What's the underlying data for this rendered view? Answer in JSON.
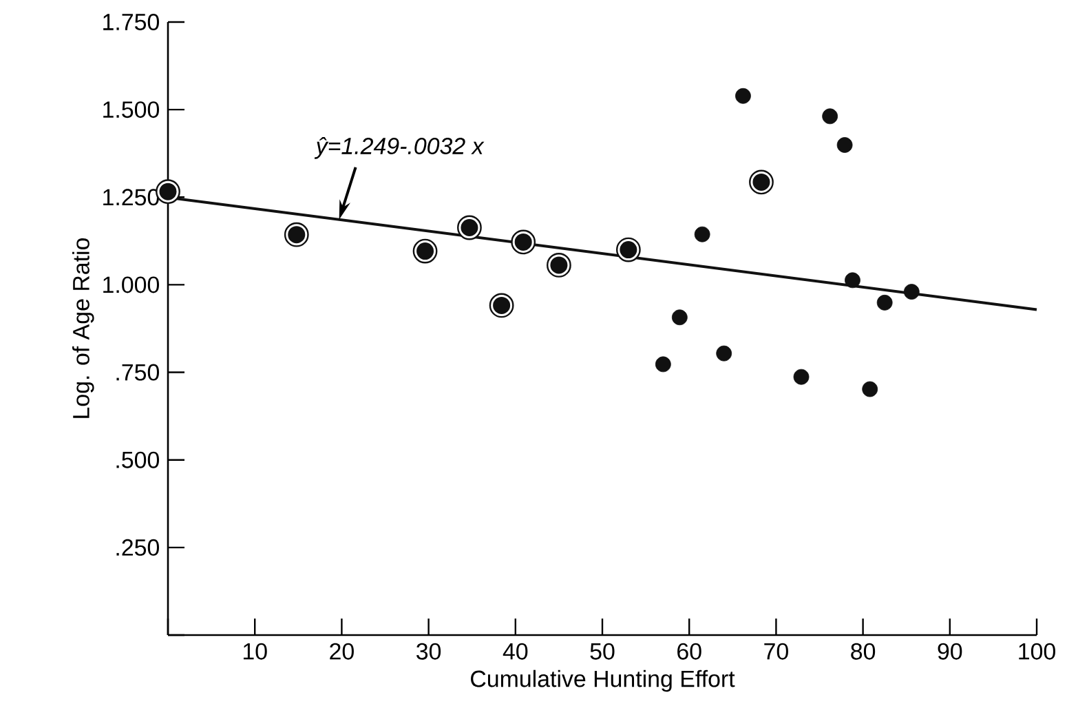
{
  "chart_data": {
    "type": "scatter",
    "xlabel": "Cumulative Hunting Effort",
    "ylabel": "Log. of Age Ratio",
    "xlim": [
      0,
      100
    ],
    "ylim": [
      0,
      1.75
    ],
    "xticks": [
      {
        "value": 0,
        "label": null
      },
      10,
      20,
      30,
      40,
      50,
      60,
      70,
      80,
      90,
      100
    ],
    "yticks": [
      {
        "value": 0,
        "label": null
      },
      {
        "value": 0.25,
        "label": ".250"
      },
      {
        "value": 0.5,
        "label": ".500"
      },
      {
        "value": 0.75,
        "label": ".750"
      },
      {
        "value": 1.0,
        "label": "1.000"
      },
      {
        "value": 1.25,
        "label": "1.250"
      },
      {
        "value": 1.5,
        "label": "1.500"
      },
      {
        "value": 1.75,
        "label": "1.750"
      }
    ],
    "series": [
      {
        "type": "scatter",
        "marker": "circle",
        "color": "#111111",
        "x": [
          0,
          14.8,
          29.6,
          34.7,
          38.4,
          40.9,
          45.0,
          53.0,
          68.3
        ],
        "values": [
          1.266,
          1.143,
          1.096,
          1.163,
          0.941,
          1.122,
          1.056,
          1.1,
          1.293
        ]
      },
      {
        "type": "scatter",
        "color": "#111111",
        "x": [
          57.0,
          58.9,
          61.5,
          64.0,
          66.2,
          72.9,
          76.2,
          77.9,
          78.8,
          80.8,
          82.5,
          85.6
        ],
        "values": [
          0.773,
          0.907,
          1.144,
          0.804,
          1.539,
          0.737,
          1.481,
          1.399,
          1.013,
          0.702,
          0.949,
          0.98
        ]
      },
      {
        "type": "line",
        "color": "#111111",
        "x": [
          0,
          100
        ],
        "values": [
          1.249,
          0.929
        ]
      }
    ],
    "annotations": [
      {
        "text": "ŷ=1.249-.0032 x",
        "x": 19.7,
        "y": 1.186
      }
    ],
    "line_style": "solid"
  }
}
